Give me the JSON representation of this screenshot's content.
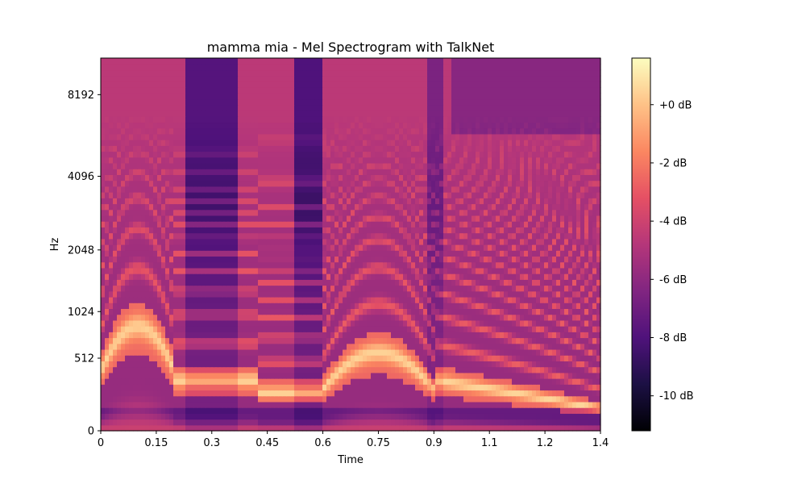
{
  "chart_data": {
    "type": "heatmap",
    "title": "mamma mia - Mel Spectrogram with TalkNet",
    "xlabel": "Time",
    "ylabel": "Hz",
    "x_ticks": [
      {
        "value": 0,
        "label": "0"
      },
      {
        "value": 0.15,
        "label": "0.15"
      },
      {
        "value": 0.3,
        "label": "0.3"
      },
      {
        "value": 0.45,
        "label": "0.45"
      },
      {
        "value": 0.6,
        "label": "0.6"
      },
      {
        "value": 0.75,
        "label": "0.75"
      },
      {
        "value": 0.9,
        "label": "0.9"
      },
      {
        "value": 1.05,
        "label": "1.1"
      },
      {
        "value": 1.2,
        "label": "1.2"
      },
      {
        "value": 1.35,
        "label": "1.4"
      }
    ],
    "xlim": [
      0,
      1.35
    ],
    "y_scale": "mel",
    "y_ticks": [
      {
        "value": 0,
        "label": "0"
      },
      {
        "value": 512,
        "label": "512"
      },
      {
        "value": 1024,
        "label": "1024"
      },
      {
        "value": 2048,
        "label": "2048"
      },
      {
        "value": 4096,
        "label": "4096"
      },
      {
        "value": 8192,
        "label": "8192"
      }
    ],
    "ylim": [
      0,
      11025
    ],
    "colormap": "magma",
    "colorbar": {
      "range": [
        -11.2,
        1.6
      ],
      "ticks": [
        {
          "value": 0,
          "label": "+0 dB"
        },
        {
          "value": -2,
          "label": "-2 dB"
        },
        {
          "value": -4,
          "label": "-4 dB"
        },
        {
          "value": -6,
          "label": "-6 dB"
        },
        {
          "value": -8,
          "label": "-8 dB"
        },
        {
          "value": -10,
          "label": "-10 dB"
        }
      ]
    }
  }
}
